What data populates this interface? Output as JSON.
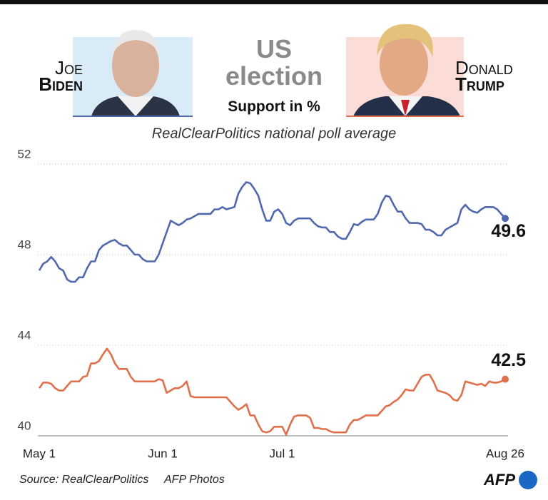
{
  "chart_data": {
    "type": "line",
    "title": "US election",
    "subtitle": "Support in %",
    "caption": "RealClearPolitics national poll average",
    "source": "Source: RealClearPolitics",
    "credit": "AFP Photos",
    "logo": "AFP",
    "categories": [
      "May 1",
      null,
      null,
      null,
      null,
      null,
      null,
      null,
      null,
      null,
      null,
      null,
      null,
      null,
      null,
      null,
      null,
      null,
      null,
      null,
      null,
      null,
      null,
      null,
      null,
      null,
      null,
      null,
      null,
      null,
      null,
      "Jun 1",
      null,
      null,
      null,
      null,
      null,
      null,
      null,
      null,
      null,
      null,
      null,
      null,
      null,
      null,
      null,
      null,
      null,
      null,
      null,
      null,
      null,
      null,
      null,
      null,
      null,
      null,
      null,
      null,
      null,
      "Jul 1",
      null,
      null,
      null,
      null,
      null,
      null,
      null,
      null,
      null,
      null,
      null,
      null,
      null,
      null,
      null,
      null,
      null,
      null,
      null,
      null,
      null,
      null,
      null,
      null,
      null,
      null,
      null,
      null,
      null,
      null,
      null,
      null,
      null,
      null,
      null,
      null,
      null,
      null,
      null,
      null,
      null,
      null,
      null,
      null,
      null,
      null,
      null,
      null,
      null,
      null,
      null,
      null,
      null,
      null,
      null,
      "Aug 26"
    ],
    "ylim": [
      40,
      52
    ],
    "yticks": [
      40,
      44,
      48,
      52
    ],
    "grid": true,
    "series": [
      {
        "first_name": "Joe",
        "last_name": "Biden",
        "color": "#5068ad",
        "values": [
          47.3,
          47.6,
          47.7,
          47.9,
          47.7,
          47.4,
          47.3,
          46.9,
          46.8,
          46.8,
          47.0,
          47.0,
          47.4,
          47.7,
          47.7,
          48.2,
          48.4,
          48.5,
          48.6,
          48.65,
          48.5,
          48.4,
          48.4,
          48.2,
          48.0,
          48.0,
          47.8,
          47.7,
          47.7,
          47.7,
          48.0,
          48.5,
          49.0,
          49.5,
          49.4,
          49.3,
          49.4,
          49.55,
          49.6,
          49.7,
          49.8,
          49.8,
          49.8,
          49.8,
          50.0,
          50.0,
          50.1,
          50.0,
          50.05,
          50.1,
          50.7,
          51.0,
          51.2,
          51.15,
          50.9,
          50.6,
          50.0,
          49.5,
          49.5,
          49.9,
          50.0,
          49.8,
          49.4,
          49.3,
          49.5,
          49.6,
          49.6,
          49.6,
          49.6,
          49.4,
          49.25,
          49.2,
          49.2,
          49.0,
          49.0,
          48.8,
          48.7,
          48.7,
          49.0,
          49.35,
          49.3,
          49.45,
          49.55,
          49.55,
          49.55,
          49.8,
          50.3,
          50.6,
          50.55,
          50.2,
          49.9,
          49.9,
          49.6,
          49.4,
          49.4,
          49.4,
          49.35,
          49.1,
          49.1,
          49.0,
          48.85,
          48.85,
          49.1,
          49.2,
          49.3,
          49.4,
          50.0,
          50.2,
          50.0,
          49.9,
          49.85,
          50.0,
          50.1,
          50.1,
          50.1,
          50.0,
          49.8,
          49.6
        ]
      },
      {
        "first_name": "Donald",
        "last_name": "Trump",
        "color": "#e0704c",
        "values": [
          42.1,
          42.35,
          42.35,
          42.3,
          42.1,
          42.0,
          42.0,
          42.2,
          42.4,
          42.4,
          42.4,
          42.6,
          42.65,
          43.2,
          43.2,
          43.3,
          43.6,
          43.85,
          43.6,
          43.2,
          42.95,
          42.95,
          42.95,
          42.6,
          42.4,
          42.4,
          42.4,
          42.4,
          42.4,
          42.4,
          42.5,
          42.45,
          41.9,
          42.0,
          42.1,
          42.1,
          42.2,
          42.4,
          41.75,
          41.7,
          41.7,
          41.7,
          41.7,
          41.7,
          41.7,
          41.7,
          41.7,
          41.7,
          41.5,
          41.3,
          41.15,
          41.25,
          41.4,
          40.9,
          40.9,
          40.5,
          40.2,
          40.15,
          40.2,
          40.4,
          40.4,
          40.4,
          40.05,
          40.5,
          40.85,
          40.9,
          40.9,
          40.9,
          40.8,
          40.35,
          40.35,
          40.3,
          40.3,
          40.2,
          40.15,
          40.15,
          40.15,
          40.15,
          40.5,
          40.7,
          40.7,
          40.8,
          40.9,
          40.9,
          40.9,
          40.9,
          41.1,
          41.3,
          41.35,
          41.5,
          41.6,
          41.8,
          42.05,
          42.0,
          42.0,
          42.3,
          42.6,
          42.7,
          42.7,
          42.4,
          42.0,
          41.95,
          41.9,
          41.8,
          41.6,
          41.55,
          41.8,
          42.4,
          42.35,
          42.3,
          42.25,
          42.3,
          42.2,
          42.4,
          42.35,
          42.35,
          42.4,
          42.5
        ]
      }
    ]
  }
}
